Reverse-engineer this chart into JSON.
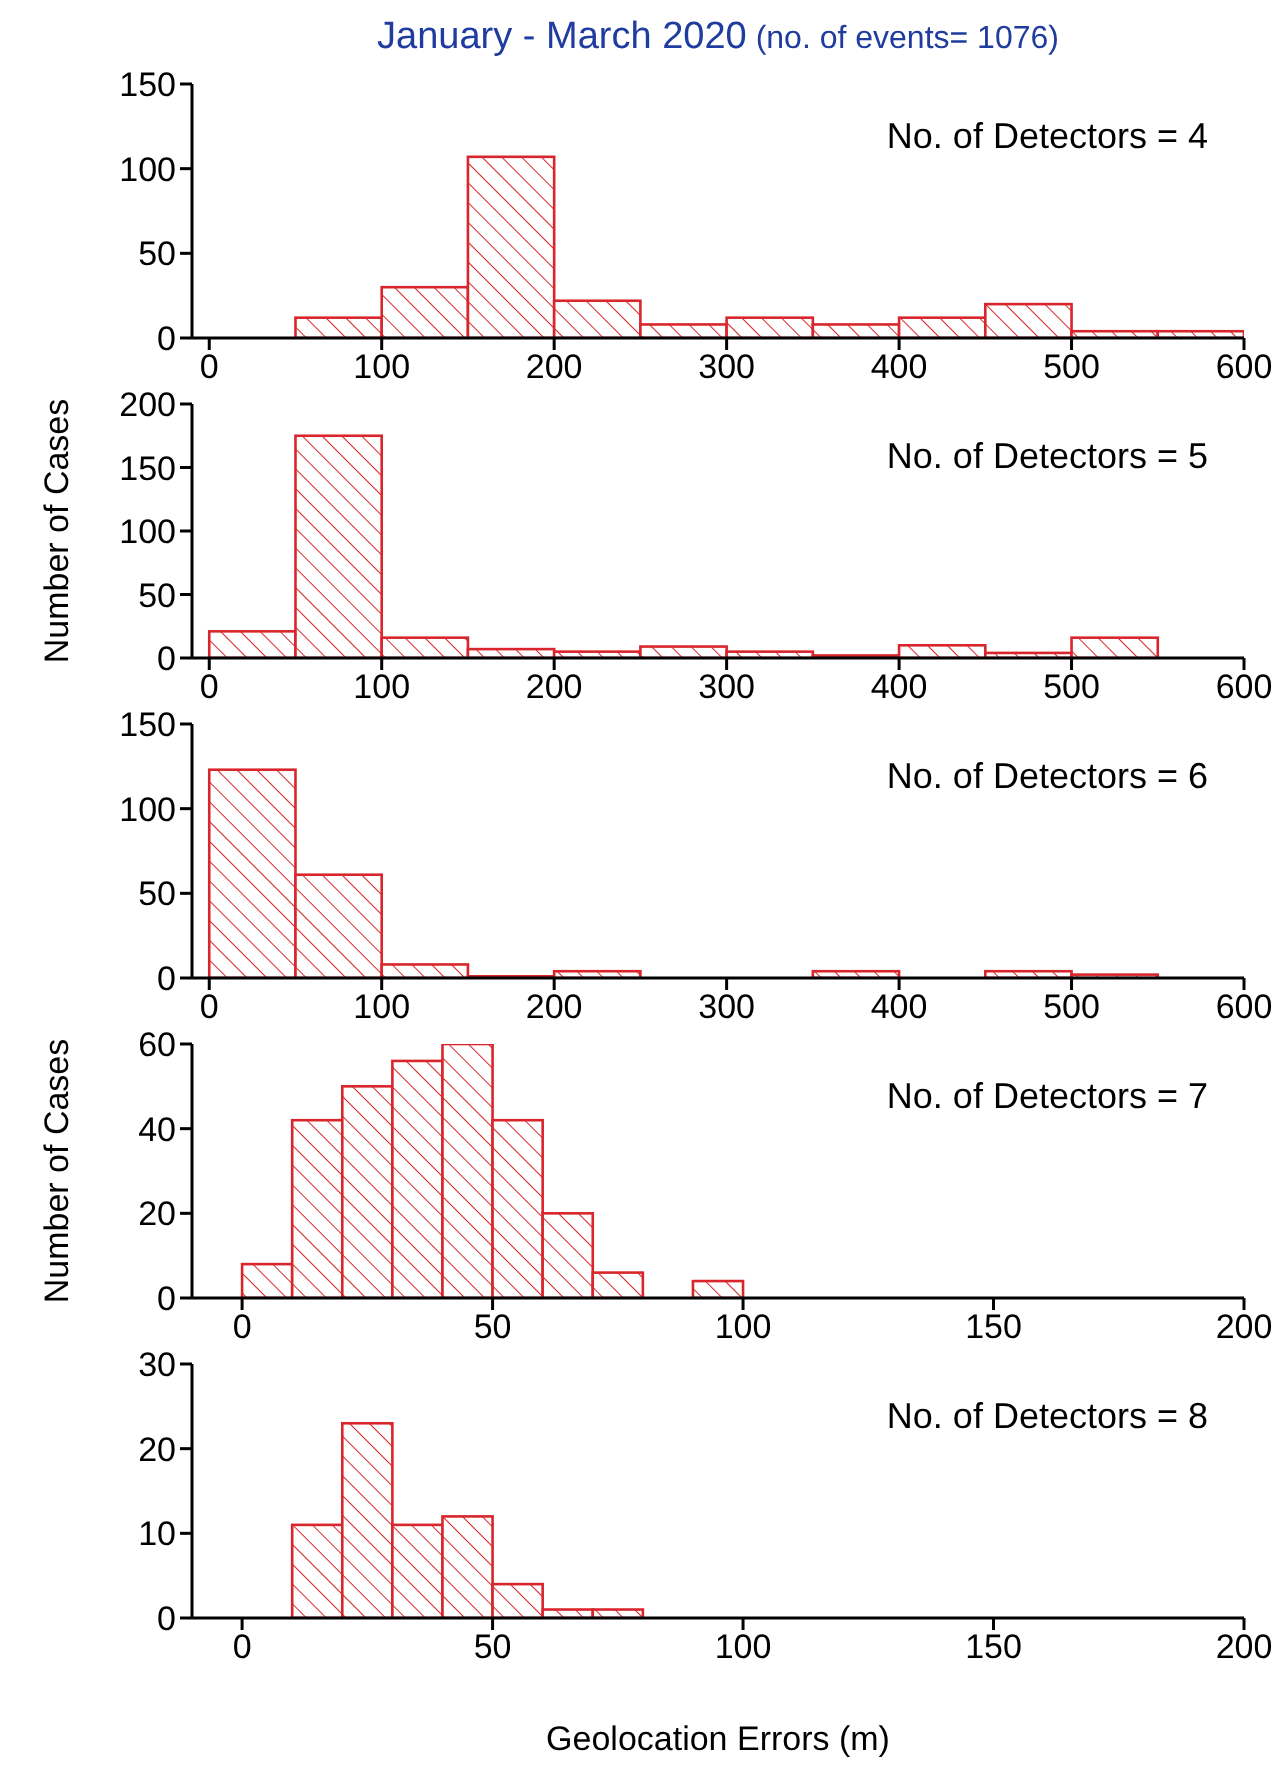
{
  "chart_data": [
    {
      "type": "histogram",
      "title": "January - March 2020",
      "subtitle": "(no. of events= 1076)",
      "annotations": [
        "No. of Detectors = 4"
      ],
      "color": "#d8262c",
      "bins": [
        50,
        100,
        150,
        200,
        250,
        300,
        350,
        400,
        450,
        500,
        550,
        600
      ],
      "values": [
        12,
        30,
        107,
        22,
        8,
        12,
        8,
        12,
        20,
        4,
        4
      ],
      "xlim": [
        -10,
        600
      ],
      "xticks": [
        0,
        100,
        200,
        300,
        400,
        500,
        600
      ],
      "ylim": [
        0,
        150
      ],
      "yticks": [
        0,
        50,
        100,
        150
      ]
    },
    {
      "type": "histogram",
      "ylabel": "Number of Cases",
      "annotations": [
        "No. of Detectors = 5"
      ],
      "color": "#d8262c",
      "bins": [
        0,
        50,
        100,
        150,
        200,
        250,
        300,
        350,
        400,
        450,
        500,
        550
      ],
      "values": [
        21,
        175,
        16,
        7,
        5,
        9,
        5,
        2,
        10,
        4,
        16
      ],
      "xlim": [
        -10,
        600
      ],
      "xticks": [
        0,
        100,
        200,
        300,
        400,
        500,
        600
      ],
      "ylim": [
        0,
        200
      ],
      "yticks": [
        0,
        50,
        100,
        150,
        200
      ]
    },
    {
      "type": "histogram",
      "annotations": [
        "No. of Detectors = 6"
      ],
      "color": "#d8262c",
      "bins": [
        0,
        50,
        100,
        150,
        200,
        250,
        300,
        350,
        400,
        450,
        500,
        550
      ],
      "values": [
        123,
        61,
        8,
        1,
        4,
        0,
        0,
        4,
        0,
        4,
        2
      ],
      "xlim": [
        -10,
        600
      ],
      "xticks": [
        0,
        100,
        200,
        300,
        400,
        500,
        600
      ],
      "ylim": [
        0,
        150
      ],
      "yticks": [
        0,
        50,
        100,
        150
      ]
    },
    {
      "type": "histogram",
      "ylabel": "Number of Cases",
      "annotations": [
        "No. of Detectors = 7"
      ],
      "color": "#d8262c",
      "bins": [
        0,
        10,
        20,
        30,
        40,
        50,
        60,
        70,
        80,
        90,
        100
      ],
      "values": [
        8,
        42,
        50,
        56,
        60,
        42,
        20,
        6,
        0,
        4
      ],
      "xlim": [
        -10,
        200
      ],
      "xticks": [
        0,
        50,
        100,
        150,
        200
      ],
      "ylim": [
        0,
        60
      ],
      "yticks": [
        0,
        20,
        40,
        60
      ]
    },
    {
      "type": "histogram",
      "xlabel": "Geolocation Errors (m)",
      "annotations": [
        "No. of Detectors = 8"
      ],
      "color": "#d8262c",
      "bins": [
        10,
        20,
        30,
        40,
        50,
        60,
        70,
        80
      ],
      "values": [
        11,
        23,
        11,
        12,
        4,
        1,
        1
      ],
      "xlim": [
        -10,
        200
      ],
      "xticks": [
        0,
        50,
        100,
        150,
        200
      ],
      "ylim": [
        0,
        30
      ],
      "yticks": [
        0,
        10,
        20,
        30
      ]
    }
  ]
}
